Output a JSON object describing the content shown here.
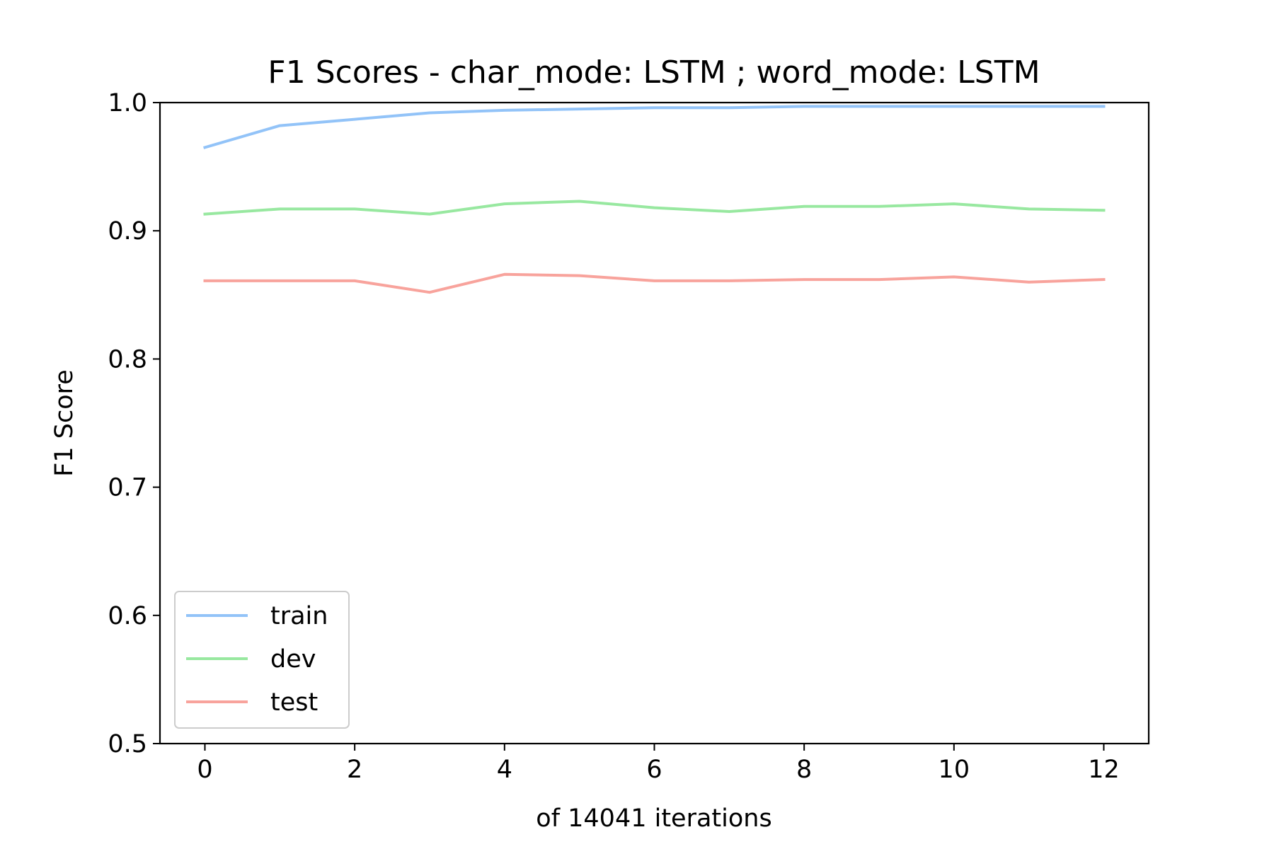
{
  "chart_data": {
    "type": "line",
    "title": "F1 Scores - char_mode: LSTM ; word_mode: LSTM",
    "xlabel": "of 14041 iterations",
    "ylabel": "F1 Score",
    "xlim": [
      -0.6,
      12.6
    ],
    "ylim": [
      0.5,
      1.0
    ],
    "xticks": [
      0,
      2,
      4,
      6,
      8,
      10,
      12
    ],
    "xtick_labels": [
      "0",
      "2",
      "4",
      "6",
      "8",
      "10",
      "12"
    ],
    "yticks": [
      0.5,
      0.6,
      0.7,
      0.8,
      0.9,
      1.0
    ],
    "ytick_labels": [
      "0.5",
      "0.6",
      "0.7",
      "0.8",
      "0.9",
      "1.0"
    ],
    "grid": false,
    "legend_position": "lower-left",
    "x": [
      0,
      1,
      2,
      3,
      4,
      5,
      6,
      7,
      8,
      9,
      10,
      11,
      12
    ],
    "series": [
      {
        "name": "train",
        "color": "#92c3f8",
        "values": [
          0.965,
          0.982,
          0.987,
          0.992,
          0.994,
          0.995,
          0.996,
          0.996,
          0.997,
          0.997,
          0.997,
          0.997,
          0.997
        ]
      },
      {
        "name": "dev",
        "color": "#98e8a0",
        "values": [
          0.913,
          0.917,
          0.917,
          0.913,
          0.921,
          0.923,
          0.918,
          0.915,
          0.919,
          0.919,
          0.921,
          0.917,
          0.916
        ]
      },
      {
        "name": "test",
        "color": "#f8a39c",
        "values": [
          0.861,
          0.861,
          0.861,
          0.852,
          0.866,
          0.865,
          0.861,
          0.861,
          0.862,
          0.862,
          0.864,
          0.86,
          0.862
        ]
      }
    ]
  }
}
